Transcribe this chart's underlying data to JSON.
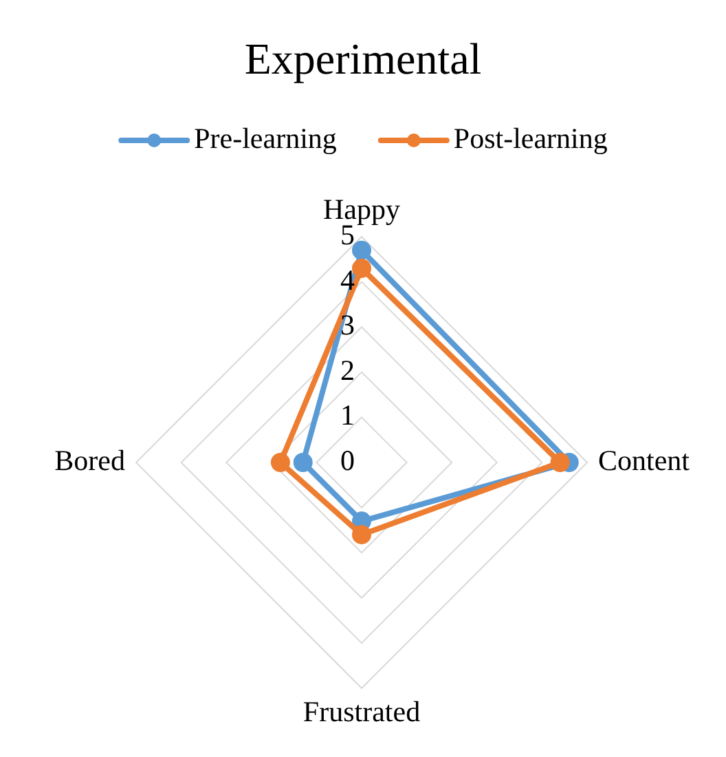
{
  "chart_data": {
    "type": "radar",
    "title": "Experimental",
    "categories": [
      "Happy",
      "Content",
      "Frustrated",
      "Bored"
    ],
    "series": [
      {
        "name": "Pre-learning",
        "color": "#5b9bd5",
        "values": [
          4.7,
          4.6,
          1.3,
          1.3
        ]
      },
      {
        "name": "Post-learning",
        "color": "#ed7d31",
        "values": [
          4.3,
          4.4,
          1.6,
          1.8
        ]
      }
    ],
    "ylim": [
      0,
      5
    ],
    "yticks": [
      0,
      1,
      2,
      3,
      4,
      5
    ],
    "grid": true,
    "legend": "top",
    "marker": "circle"
  }
}
